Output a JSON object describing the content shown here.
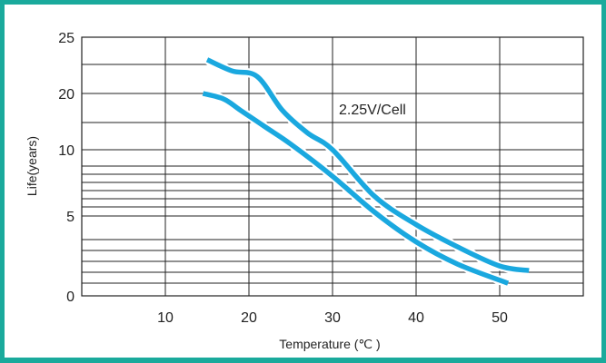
{
  "chart_data": {
    "type": "line",
    "title": "",
    "xlabel": "Temperature (℃ )",
    "ylabel": "Life(years)",
    "x_ticks": [
      10,
      20,
      30,
      40,
      50
    ],
    "y_ticks": [
      "25",
      "20",
      "10",
      "5",
      "0"
    ],
    "xlim": [
      0,
      60
    ],
    "scale": "non-uniform (log-style)",
    "grid": true,
    "annotation": "2.25V/Cell",
    "colors": {
      "frame": "#1aaa9c",
      "curve": "#1aa8df",
      "grid": "#222222"
    },
    "series": [
      {
        "x": [
          15,
          18,
          21,
          24,
          27,
          30,
          35,
          40,
          45,
          50,
          53.5
        ],
        "y": [
          23,
          22,
          21.5,
          17,
          13,
          10,
          6.5,
          4.5,
          3.2,
          2.1,
          1.8
        ]
      },
      {
        "x": [
          14.5,
          17,
          19,
          22,
          25,
          30,
          35,
          40,
          45,
          51
        ],
        "y": [
          20,
          19,
          17,
          14,
          11,
          8,
          5.3,
          3.5,
          2.2,
          0.9
        ]
      }
    ]
  }
}
